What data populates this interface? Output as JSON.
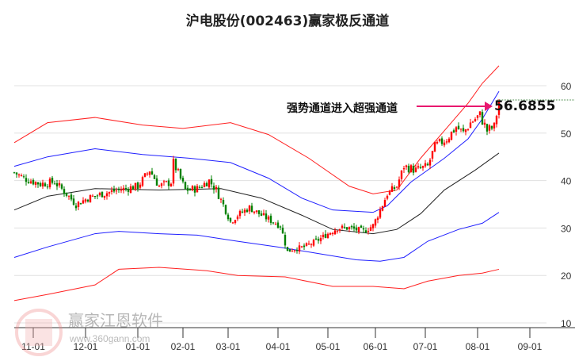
{
  "chart_data": {
    "type": "candlestick",
    "title": "沪电股份(002463)赢家极反通道",
    "ylim": [
      10,
      66
    ],
    "yticks": [
      10,
      20,
      30,
      40,
      50,
      60
    ],
    "xunit": "trading-day index",
    "xticks": [
      {
        "t": 8,
        "label": "11-01"
      },
      {
        "t": 30,
        "label": "12-01"
      },
      {
        "t": 52,
        "label": "01-01"
      },
      {
        "t": 71,
        "label": "02-01"
      },
      {
        "t": 90,
        "label": "03-01"
      },
      {
        "t": 111,
        "label": "04-01"
      },
      {
        "t": 132,
        "label": "05-01"
      },
      {
        "t": 152,
        "label": "06-01"
      },
      {
        "t": 173,
        "label": "07-01"
      },
      {
        "t": 195,
        "label": "08-01"
      },
      {
        "t": 217,
        "label": "09-01"
      }
    ],
    "close_keypoints": [
      [
        0,
        41.7
      ],
      [
        4,
        40.5
      ],
      [
        11,
        39.3
      ],
      [
        17,
        39.7
      ],
      [
        22,
        37.2
      ],
      [
        26,
        35
      ],
      [
        31,
        36.3
      ],
      [
        37,
        37.2
      ],
      [
        44,
        38
      ],
      [
        52,
        38.8
      ],
      [
        57,
        42.2
      ],
      [
        61,
        38.8
      ],
      [
        66,
        39.7
      ],
      [
        67,
        43.8
      ],
      [
        72,
        38
      ],
      [
        77,
        38.3
      ],
      [
        82,
        40
      ],
      [
        85,
        38
      ],
      [
        89,
        33.8
      ],
      [
        91,
        31.3
      ],
      [
        94,
        32.7
      ],
      [
        99,
        34.3
      ],
      [
        104,
        32.7
      ],
      [
        109,
        31.3
      ],
      [
        112,
        30.5
      ],
      [
        115,
        25
      ],
      [
        117,
        25.5
      ],
      [
        122,
        26
      ],
      [
        127,
        27.2
      ],
      [
        132,
        28.8
      ],
      [
        136,
        30
      ],
      [
        141,
        30
      ],
      [
        147,
        29.3
      ],
      [
        151,
        30.5
      ],
      [
        154,
        33.8
      ],
      [
        157,
        37.2
      ],
      [
        161,
        38.8
      ],
      [
        164,
        43
      ],
      [
        169,
        42.2
      ],
      [
        174,
        43
      ],
      [
        177,
        47.2
      ],
      [
        182,
        48.8
      ],
      [
        186,
        51.3
      ],
      [
        189,
        50
      ],
      [
        192,
        52.2
      ],
      [
        196,
        53.8
      ],
      [
        199,
        50.5
      ],
      [
        202,
        51.3
      ],
      [
        204,
        56.7
      ]
    ],
    "series": [
      {
        "name": "red-upper",
        "color": "#ff2020",
        "points": [
          [
            0,
            48
          ],
          [
            14,
            52.2
          ],
          [
            34,
            53.3
          ],
          [
            54,
            51.7
          ],
          [
            71,
            51
          ],
          [
            91,
            52.2
          ],
          [
            107,
            49.7
          ],
          [
            124,
            44.7
          ],
          [
            141,
            38.8
          ],
          [
            151,
            37.2
          ],
          [
            161,
            38
          ],
          [
            171,
            44.7
          ],
          [
            181,
            50.5
          ],
          [
            191,
            56.3
          ],
          [
            197,
            60.5
          ],
          [
            204,
            64.2
          ]
        ]
      },
      {
        "name": "blue-upper",
        "color": "#2020ff",
        "points": [
          [
            0,
            43
          ],
          [
            14,
            45
          ],
          [
            34,
            46.7
          ],
          [
            54,
            45.5
          ],
          [
            74,
            44.7
          ],
          [
            91,
            43.8
          ],
          [
            107,
            40.5
          ],
          [
            121,
            36.3
          ],
          [
            134,
            33.8
          ],
          [
            151,
            33.3
          ],
          [
            157,
            34.7
          ],
          [
            167,
            39.7
          ],
          [
            181,
            44.7
          ],
          [
            191,
            48.8
          ],
          [
            197,
            53
          ],
          [
            204,
            58.8
          ]
        ]
      },
      {
        "name": "middle",
        "color": "#222222",
        "points": [
          [
            0,
            33.8
          ],
          [
            14,
            36.7
          ],
          [
            34,
            38.3
          ],
          [
            61,
            38
          ],
          [
            87,
            38.3
          ],
          [
            104,
            36.3
          ],
          [
            121,
            32.7
          ],
          [
            134,
            29.7
          ],
          [
            151,
            28.8
          ],
          [
            161,
            29.7
          ],
          [
            171,
            33
          ],
          [
            181,
            38
          ],
          [
            194,
            42.2
          ],
          [
            204,
            45.8
          ]
        ]
      },
      {
        "name": "blue-lower",
        "color": "#2020ff",
        "points": [
          [
            0,
            23.8
          ],
          [
            14,
            26
          ],
          [
            34,
            28.8
          ],
          [
            44,
            29.3
          ],
          [
            61,
            28.8
          ],
          [
            77,
            28.5
          ],
          [
            94,
            27.2
          ],
          [
            111,
            26
          ],
          [
            127,
            24.7
          ],
          [
            144,
            23.3
          ],
          [
            154,
            23
          ],
          [
            164,
            23.8
          ],
          [
            174,
            27.2
          ],
          [
            187,
            29.7
          ],
          [
            197,
            31
          ],
          [
            204,
            33.3
          ]
        ]
      },
      {
        "name": "red-lower",
        "color": "#ff2020",
        "points": [
          [
            0,
            14.7
          ],
          [
            14,
            16
          ],
          [
            34,
            18
          ],
          [
            44,
            21.3
          ],
          [
            61,
            21.7
          ],
          [
            81,
            21
          ],
          [
            94,
            20
          ],
          [
            114,
            19.7
          ],
          [
            134,
            17.7
          ],
          [
            151,
            17.7
          ],
          [
            164,
            17.2
          ],
          [
            174,
            18.8
          ],
          [
            187,
            20
          ],
          [
            197,
            20.5
          ],
          [
            204,
            21.3
          ]
        ]
      }
    ],
    "annotation": {
      "text": "强势通道进入超强通道",
      "value": "56.6855",
      "arrow_color": "#e8186e"
    }
  },
  "watermark": {
    "name": "赢家江恩软件",
    "url": "www.360gann.com",
    "seal": "江赢恩家"
  }
}
